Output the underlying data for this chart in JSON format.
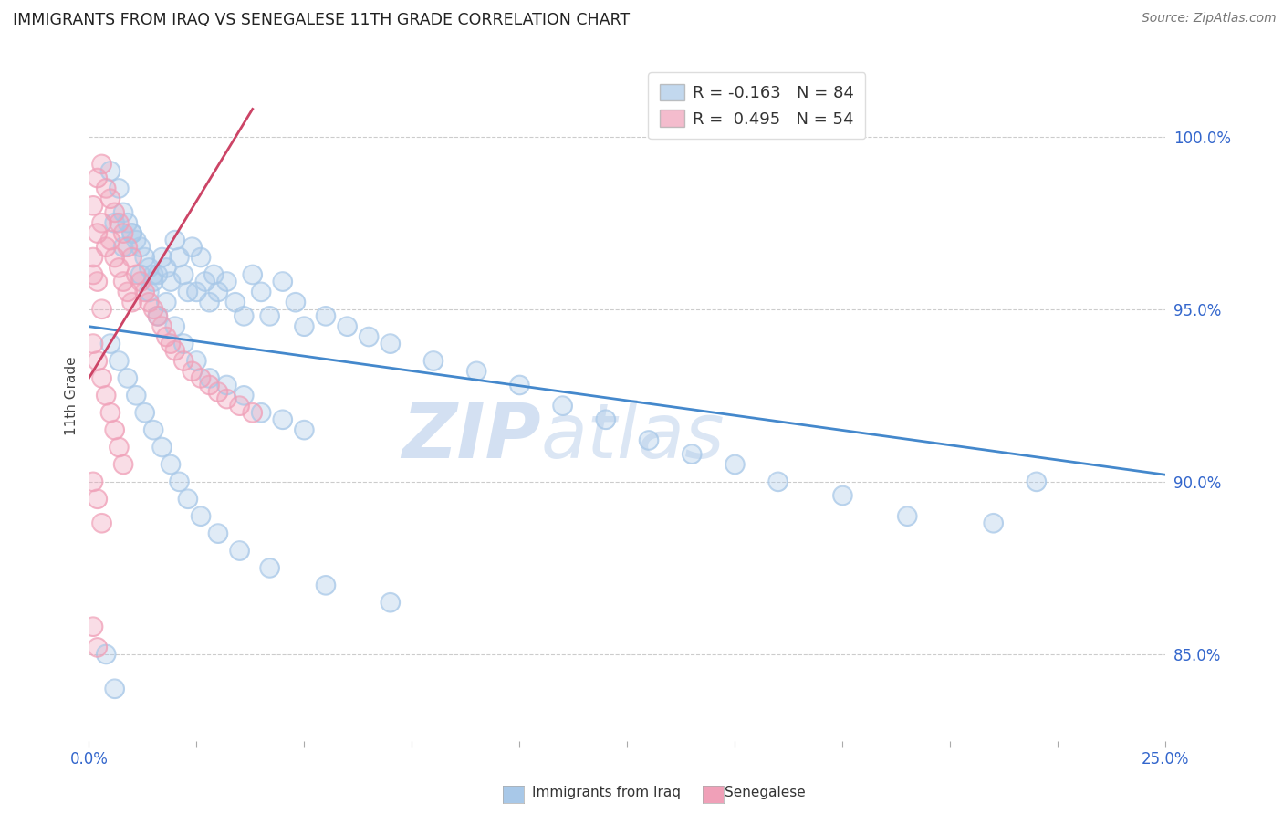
{
  "title": "IMMIGRANTS FROM IRAQ VS SENEGALESE 11TH GRADE CORRELATION CHART",
  "source": "Source: ZipAtlas.com",
  "ylabel": "11th Grade",
  "ytick_labels": [
    "85.0%",
    "90.0%",
    "95.0%",
    "100.0%"
  ],
  "ytick_values": [
    0.85,
    0.9,
    0.95,
    1.0
  ],
  "xlim": [
    0.0,
    0.25
  ],
  "ylim": [
    0.825,
    1.025
  ],
  "iraq_color": "#a8c8e8",
  "senegalese_color": "#f0a0b8",
  "iraq_line_color": "#4488cc",
  "senegalese_line_color": "#cc4466",
  "background_color": "#ffffff",
  "grid_color": "#cccccc",
  "legend_label_iraq": "R = -0.163   N = 84",
  "legend_label_sen": "R =  0.495   N = 54",
  "iraq_trend_x": [
    0.0,
    0.25
  ],
  "iraq_trend_y": [
    0.945,
    0.902
  ],
  "senegalese_trend_x": [
    0.0,
    0.038
  ],
  "senegalese_trend_y": [
    0.93,
    1.008
  ]
}
